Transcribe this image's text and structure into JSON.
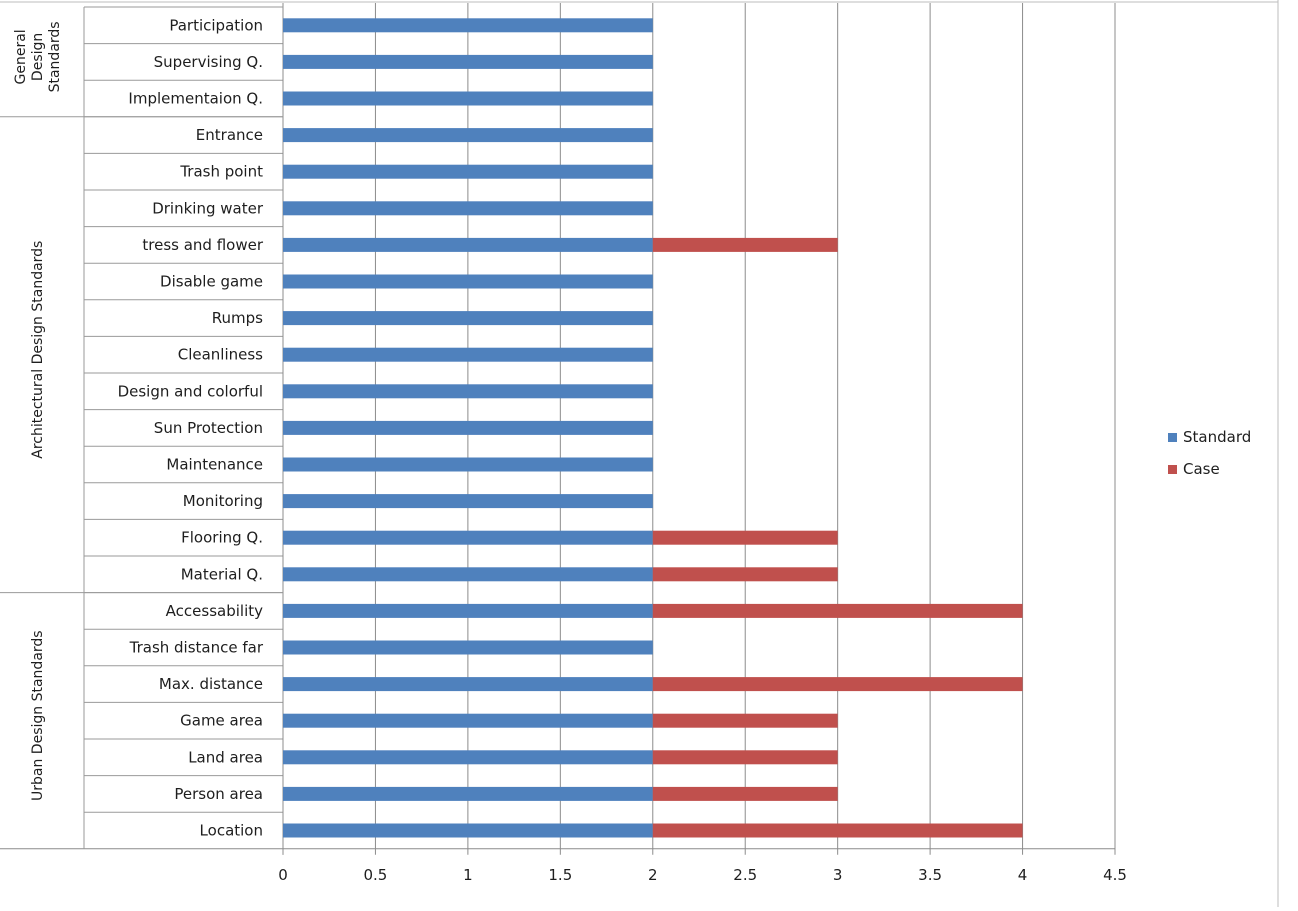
{
  "chart_data": {
    "type": "bar",
    "orientation": "horizontal",
    "stacked": true,
    "xlim": [
      0,
      4.5
    ],
    "xticks": [
      "0",
      "0.5",
      "1",
      "1.5",
      "2",
      "2.5",
      "3",
      "3.5",
      "4",
      "4.5"
    ],
    "grid": true,
    "legend_position": "right",
    "categories": [
      "Participation",
      "Supervising Q.",
      "Implementaion Q.",
      "Entrance",
      "Trash point",
      "Drinking water",
      "tress and flower",
      "Disable game",
      "Rumps",
      "Cleanliness",
      "Design and colorful",
      "Sun Protection",
      "Maintenance",
      "Monitoring",
      "Flooring Q.",
      "Material Q.",
      "Accessability",
      "Trash distance far",
      "Max. distance",
      "Game area",
      "Land area",
      "Person area",
      "Location"
    ],
    "groups": [
      {
        "label": "General Design Standards",
        "lines": [
          "General",
          "Design",
          "Standards"
        ],
        "count": 3
      },
      {
        "label": "Architectural Design Standards",
        "lines": [
          "Architectural Design Standards"
        ],
        "count": 13
      },
      {
        "label": "Urban Design Standards",
        "lines": [
          "Urban Design Standards"
        ],
        "count": 7
      }
    ],
    "series": [
      {
        "name": "Standard",
        "color": "#4f81bd",
        "values": [
          2,
          2,
          2,
          2,
          2,
          2,
          2,
          2,
          2,
          2,
          2,
          2,
          2,
          2,
          2,
          2,
          2,
          2,
          2,
          2,
          2,
          2,
          2
        ]
      },
      {
        "name": "Case",
        "color": "#c0504d",
        "values": [
          0,
          0,
          0,
          0,
          0,
          0,
          1,
          0,
          0,
          0,
          0,
          0,
          0,
          0,
          1,
          1,
          2,
          0,
          2,
          1,
          1,
          1,
          2
        ]
      }
    ]
  }
}
